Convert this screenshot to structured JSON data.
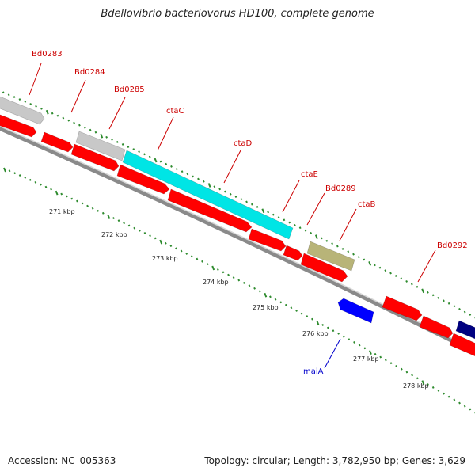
{
  "title": "Bdellovibrio bacteriovorus HD100, complete genome",
  "footer": {
    "accession": "Accession: NC_005363",
    "topology": "Topology: circular; Length: 3,782,950 bp; Genes: 3,629"
  },
  "colors": {
    "cds_forward": "#ff0000",
    "cds_reverse": "#0000ff",
    "label_forward": "#cc0000",
    "label_reverse": "#0000cc",
    "gene_grey": "#c8c8c8",
    "gene_cyan": "#00e5e5",
    "gene_olive": "#b8b478",
    "gene_navy": "#000080",
    "tick": "#2e8b2e"
  },
  "scale_labels": [
    "271 kbp",
    "272 kbp",
    "273 kbp",
    "274 kbp",
    "275 kbp",
    "276 kbp",
    "277 kbp",
    "278 kbp"
  ],
  "gene_labels": [
    {
      "id": "bd0283",
      "text": "Bd0283",
      "strand": "forward"
    },
    {
      "id": "bd0284",
      "text": "Bd0284",
      "strand": "forward"
    },
    {
      "id": "bd0285",
      "text": "Bd0285",
      "strand": "forward"
    },
    {
      "id": "ctac",
      "text": "ctaC",
      "strand": "forward"
    },
    {
      "id": "ctad",
      "text": "ctaD",
      "strand": "forward"
    },
    {
      "id": "ctae",
      "text": "ctaE",
      "strand": "forward"
    },
    {
      "id": "bd0289",
      "text": "Bd0289",
      "strand": "forward"
    },
    {
      "id": "ctab",
      "text": "ctaB",
      "strand": "forward"
    },
    {
      "id": "bd0292",
      "text": "Bd0292",
      "strand": "forward"
    },
    {
      "id": "maia",
      "text": "maiA",
      "strand": "reverse"
    }
  ]
}
